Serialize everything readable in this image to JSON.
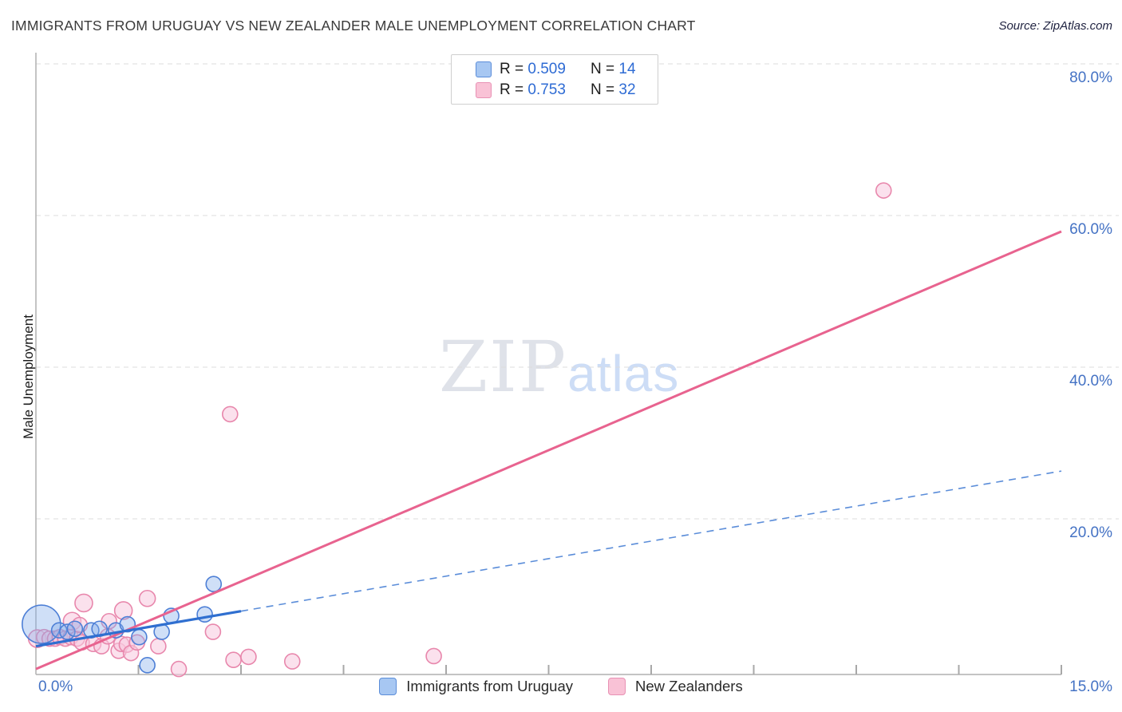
{
  "header": {
    "title": "IMMIGRANTS FROM URUGUAY VS NEW ZEALANDER MALE UNEMPLOYMENT CORRELATION CHART",
    "source": "Source: ZipAtlas.com"
  },
  "watermark": {
    "zip": "ZIP",
    "atlas": "atlas"
  },
  "axes": {
    "y_label": "Male Unemployment",
    "y_ticks": [
      {
        "label": "80.0%",
        "value": 80
      },
      {
        "label": "60.0%",
        "value": 60
      },
      {
        "label": "40.0%",
        "value": 40
      },
      {
        "label": "20.0%",
        "value": 20
      }
    ],
    "x_min_label": "0.0%",
    "x_max_label": "15.0%"
  },
  "legend_box": {
    "rows": [
      {
        "series": "uruguay",
        "r_label": "R = ",
        "r_value": "0.509",
        "n_label": "N = ",
        "n_value": "14"
      },
      {
        "series": "nz",
        "r_label": "R = ",
        "r_value": "0.753",
        "n_label": "N = ",
        "n_value": "32"
      }
    ]
  },
  "bottom_legend": {
    "items": [
      {
        "series": "uruguay",
        "label": "Immigrants from Uruguay"
      },
      {
        "series": "nz",
        "label": "New Zealanders"
      }
    ]
  },
  "colors": {
    "accent_blue": "#4472c4",
    "grid": "#dcdcdc",
    "axis": "#b0b0b0",
    "tick": "#a8a8a8",
    "series_blue_stroke": "#4d7fd6",
    "series_blue_fill": "rgba(130,170,235,0.38)",
    "series_pink_stroke": "#e887ac",
    "series_pink_fill": "rgba(248,200,222,0.55)",
    "trend_blue": "#2f6fd0",
    "trend_blue_dash": "#5b8dd9",
    "trend_pink": "#e8638f"
  },
  "chart_data": {
    "type": "scatter",
    "title": "Immigrants from Uruguay vs New Zealander Male Unemployment",
    "x_axis": {
      "min": 0,
      "max": 15,
      "unit": "%",
      "ticks_every": 1.5,
      "labels_shown": [
        "0.0%",
        "15.0%"
      ]
    },
    "y_axis": {
      "label": "Male Unemployment",
      "min": 0,
      "max": 82,
      "unit": "%",
      "gridlines": [
        20,
        40,
        60,
        80
      ],
      "grid_style": "dashed",
      "labels_position": "right"
    },
    "legend_position": "bottom-center",
    "series": [
      {
        "name": "Immigrants from Uruguay",
        "R": 0.509,
        "N": 14,
        "points_format": "[x_pct, y_pct, px_radius]",
        "points": [
          [
            0.08,
            6.1,
            24
          ],
          [
            0.34,
            5.3,
            9.5
          ],
          [
            0.46,
            5.1,
            9.5
          ],
          [
            0.57,
            5.5,
            9.5
          ],
          [
            0.81,
            5.3,
            9.5
          ],
          [
            0.93,
            5.5,
            9.5
          ],
          [
            1.17,
            5.3,
            9.5
          ],
          [
            1.34,
            6.1,
            9.5
          ],
          [
            1.51,
            4.4,
            9.5
          ],
          [
            1.63,
            0.7,
            9.5
          ],
          [
            1.84,
            5.1,
            9.5
          ],
          [
            1.98,
            7.2,
            9.5
          ],
          [
            2.47,
            7.4,
            9.5
          ],
          [
            2.6,
            11.4,
            9.5
          ]
        ]
      },
      {
        "name": "New Zealanders",
        "R": 0.753,
        "N": 32,
        "points_format": "[x_pct, y_pct, px_radius]",
        "points": [
          [
            0.02,
            4.2,
            11
          ],
          [
            0.12,
            4.4,
            9.5
          ],
          [
            0.2,
            4.2,
            9.5
          ],
          [
            0.28,
            4.2,
            9.5
          ],
          [
            0.35,
            4.4,
            9.5
          ],
          [
            0.43,
            4.2,
            9.5
          ],
          [
            0.51,
            4.4,
            9.5
          ],
          [
            0.6,
            4.2,
            9.5
          ],
          [
            0.53,
            6.5,
            11
          ],
          [
            0.64,
            6.0,
            9.5
          ],
          [
            0.7,
            8.9,
            11
          ],
          [
            0.67,
            3.7,
            9.5
          ],
          [
            0.84,
            3.5,
            9.5
          ],
          [
            0.96,
            3.2,
            9.5
          ],
          [
            1.05,
            4.5,
            9.5
          ],
          [
            1.07,
            6.5,
            9.5
          ],
          [
            1.21,
            2.6,
            9.5
          ],
          [
            1.25,
            3.5,
            9.5
          ],
          [
            1.28,
            7.9,
            11
          ],
          [
            1.33,
            3.4,
            9.5
          ],
          [
            1.39,
            2.3,
            9.5
          ],
          [
            1.48,
            3.7,
            9.5
          ],
          [
            1.63,
            9.5,
            10
          ],
          [
            1.79,
            3.2,
            9.5
          ],
          [
            2.09,
            0.2,
            9.5
          ],
          [
            2.59,
            5.1,
            9.5
          ],
          [
            2.89,
            1.4,
            9.5
          ],
          [
            3.11,
            1.8,
            9.5
          ],
          [
            3.75,
            1.2,
            9.5
          ],
          [
            5.82,
            1.9,
            9.5
          ],
          [
            2.84,
            33.8,
            9.5
          ],
          [
            12.4,
            63.3,
            9.5
          ]
        ]
      }
    ],
    "trend_lines": [
      {
        "series": "New Zealanders",
        "x": [
          0,
          15
        ],
        "y": [
          0.2,
          57.9
        ],
        "style": "solid"
      },
      {
        "series": "Immigrants from Uruguay",
        "x": [
          0,
          15
        ],
        "y": [
          3.2,
          26.3
        ],
        "style": "solid-then-dashed",
        "solid_to_x": 3.0
      }
    ]
  }
}
